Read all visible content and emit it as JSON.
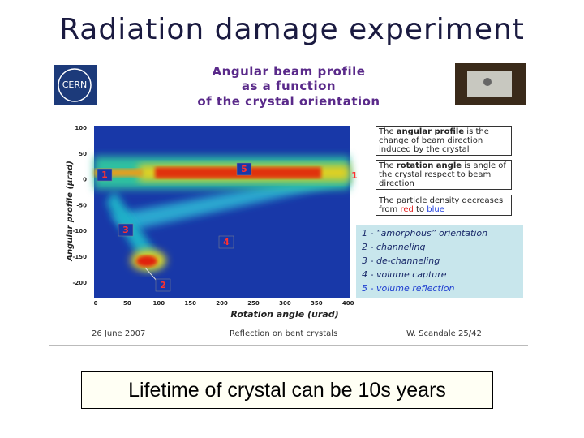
{
  "title": "Radiation damage experiment",
  "figure": {
    "logo": "CERN",
    "heading": [
      "Angular beam profile",
      "as a function",
      "of the crystal orientation"
    ],
    "y_axis_label": "Angular profile (μrad)",
    "y_ticks": [
      100,
      50,
      0,
      -50,
      -100,
      -150,
      -200
    ],
    "x_ticks": [
      0,
      50,
      100,
      150,
      200,
      250,
      300,
      350,
      400
    ],
    "x_axis_label": "Rotation angle (urad)",
    "markers": [
      "1",
      "5",
      "1",
      "3",
      "4",
      "2"
    ],
    "notes": [
      [
        "The ",
        "angular profile",
        " is the change of beam direction induced by the crystal"
      ],
      [
        "The ",
        "rotation angle",
        " is angle of the crystal respect to beam direction"
      ],
      [
        "The particle density decreases from ",
        "red",
        " to ",
        "blue"
      ]
    ],
    "legend": [
      "1 - “amorphous” orientation",
      "2 - channeling",
      "3 - de-channeling",
      "4 - volume capture",
      "5 - volume reflection"
    ],
    "footer": [
      "26 June 2007",
      "Reflection on bent crystals",
      "W. Scandale  25/42"
    ]
  },
  "caption": "Lifetime of crystal can be 10s years"
}
